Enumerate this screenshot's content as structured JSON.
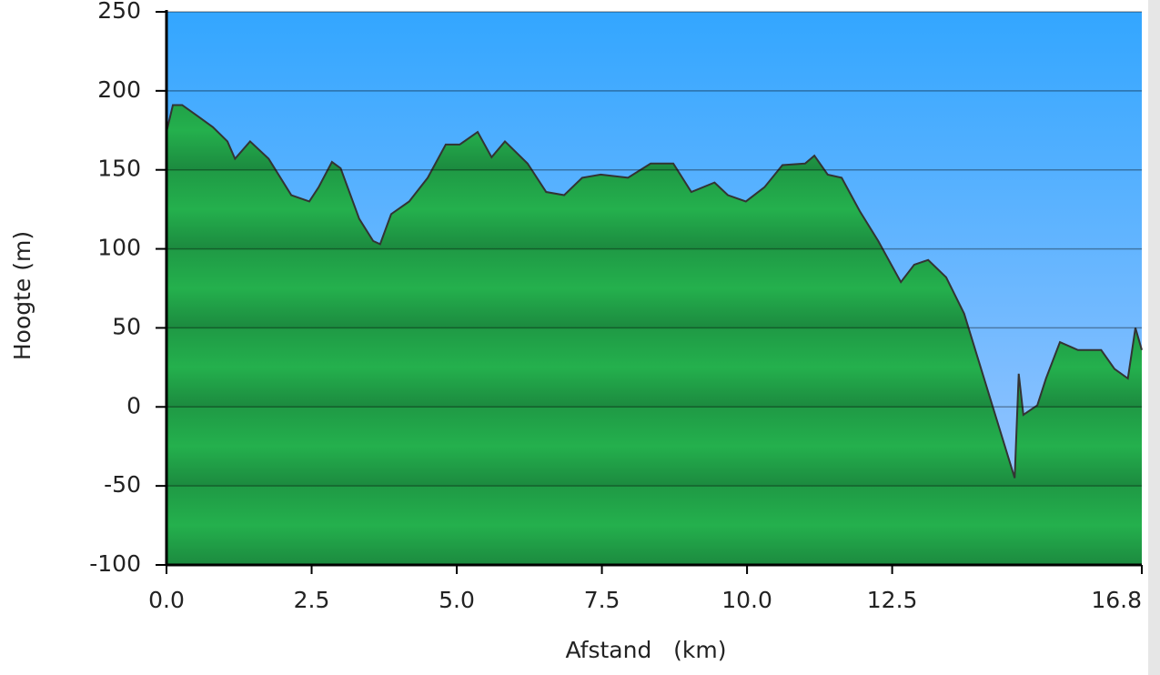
{
  "chart_data": {
    "type": "area",
    "xlabel": "Afstand   (km)",
    "ylabel": "Hoogte (m)",
    "x": [
      0,
      0.11,
      0.27,
      0.5,
      0.8,
      1.05,
      1.18,
      1.44,
      1.76,
      2.15,
      2.46,
      2.62,
      2.85,
      3.0,
      3.32,
      3.56,
      3.68,
      3.87,
      4.18,
      4.5,
      4.81,
      5.05,
      5.36,
      5.6,
      5.83,
      6.22,
      6.54,
      6.85,
      7.16,
      7.48,
      7.95,
      8.34,
      8.73,
      9.04,
      9.44,
      9.67,
      9.98,
      10.3,
      10.61,
      11.0,
      11.16,
      11.39,
      11.63,
      11.94,
      12.26,
      12.65,
      12.88,
      13.12,
      13.43,
      13.74,
      14.61,
      14.68,
      14.76,
      15.0,
      15.15,
      15.39,
      15.7,
      16.1,
      16.33,
      16.56,
      16.69,
      16.8
    ],
    "values": [
      174,
      191,
      191,
      185,
      177,
      168,
      157,
      168,
      157,
      134,
      130,
      139,
      155,
      151,
      119,
      105,
      103,
      122,
      130,
      145,
      166,
      166,
      174,
      158,
      168,
      154,
      136,
      134,
      145,
      147,
      145,
      154,
      154,
      136,
      142,
      134,
      130,
      139,
      153,
      154,
      159,
      147,
      145,
      124,
      105,
      79,
      90,
      93,
      82,
      59,
      -45,
      21,
      -5,
      1,
      18,
      41,
      36,
      36,
      24,
      18,
      50,
      36
    ],
    "color": "#22aa4a",
    "line_color": "#333333",
    "background": "#33a6ff",
    "xlim": [
      0,
      16.8
    ],
    "ylim": [
      -100,
      250
    ],
    "xticks": [
      {
        "value": 0,
        "label": "0.0"
      },
      2.5,
      {
        "value": 5,
        "label": "5.0"
      },
      7.5,
      {
        "value": 10,
        "label": "10.0"
      },
      12.5,
      16.8
    ],
    "yticks": [
      250,
      200,
      150,
      100,
      50,
      0,
      -50,
      -100
    ],
    "grid": true
  }
}
